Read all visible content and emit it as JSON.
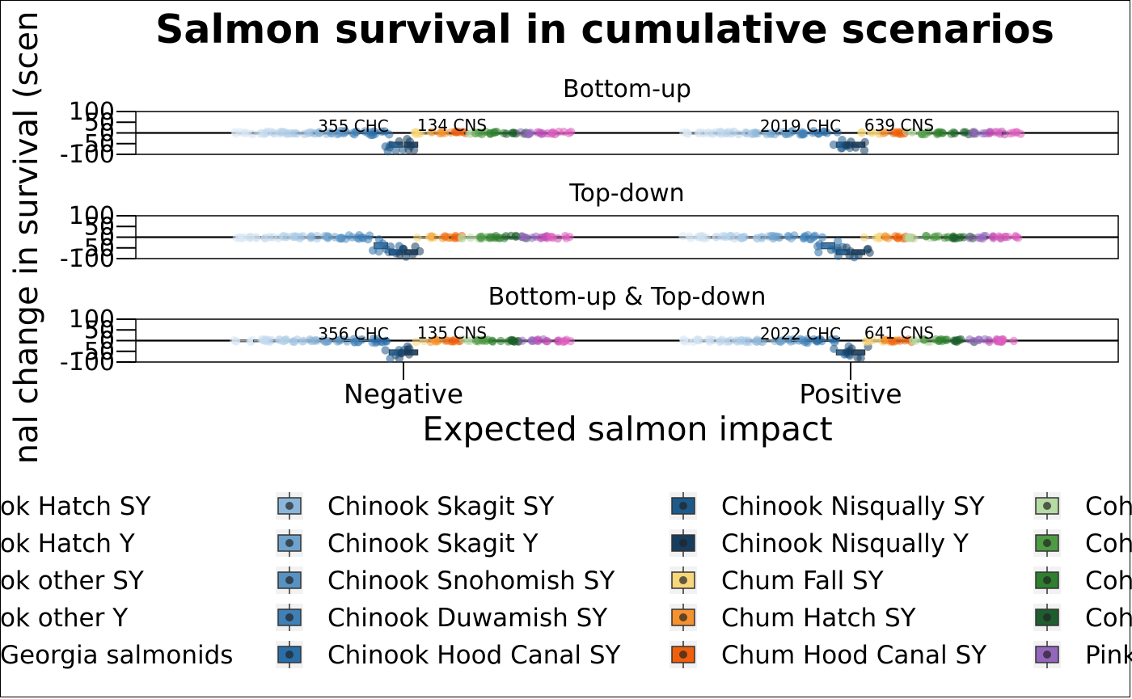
{
  "chart_data": {
    "type": "scatter",
    "title": "Salmon survival in cumulative scenarios",
    "xlabel": "Expected salmon impact",
    "ylabel": "Proportional change in survival (scenario)",
    "ylabel_visible": "nal change in survival (scen",
    "categories": [
      "Negative",
      "Positive"
    ],
    "y_ticks": [
      100,
      50,
      0,
      -50,
      -100
    ],
    "y_tick_labels": [
      "100",
      "50",
      "0",
      "-50",
      "-100"
    ],
    "ylim": [
      -100,
      100
    ],
    "panels": [
      {
        "label": "Bottom-up",
        "annotations": [
          {
            "text": "355 CHC",
            "category": "Negative",
            "y": 5
          },
          {
            "text": "134 CNS",
            "category": "Negative",
            "y": 10
          },
          {
            "text": "2019 CHC",
            "category": "Positive",
            "y": 5
          },
          {
            "text": "639 CNS",
            "category": "Positive",
            "y": 10
          }
        ]
      },
      {
        "label": "Top-down",
        "annotations": []
      },
      {
        "label": "Bottom-up & Top-down",
        "annotations": [
          {
            "text": "135 CNS",
            "category": "Negative",
            "y": 10
          },
          {
            "text": "356 CHC",
            "category": "Negative",
            "y": 5
          },
          {
            "text": "2022 CHC",
            "category": "Positive",
            "y": 5
          },
          {
            "text": "641 CNS",
            "category": "Positive",
            "y": 10
          }
        ]
      }
    ],
    "legend_placement": "bottom",
    "legend_columns": [
      {
        "items": [
          {
            "label": "ok Hatch SY",
            "color": "#dbe9f6"
          },
          {
            "label": "ok Hatch Y",
            "color": "#cfe1f2"
          },
          {
            "label": "ok other SY",
            "color": "#c3d9ee"
          },
          {
            "label": "ok other Y",
            "color": "#b5d1ea"
          },
          {
            "label": "Georgia salmonids",
            "color": "#a7c9e5"
          }
        ]
      },
      {
        "items": [
          {
            "label": "Chinook Skagit SY",
            "color": "#8cb6d9"
          },
          {
            "label": "Chinook Skagit Y",
            "color": "#6fa3cd"
          },
          {
            "label": "Chinook Snohomish SY",
            "color": "#5792c2"
          },
          {
            "label": "Chinook Duwamish SY",
            "color": "#3f80b6"
          },
          {
            "label": "Chinook Hood Canal SY",
            "color": "#2a6ea8"
          }
        ]
      },
      {
        "items": [
          {
            "label": "Chinook Nisqually SY",
            "color": "#1d5a8c"
          },
          {
            "label": "Chinook Nisqually Y",
            "color": "#163d5e"
          },
          {
            "label": "Chum Fall SY",
            "color": "#f7d77a"
          },
          {
            "label": "Chum Hatch SY",
            "color": "#f5922f"
          },
          {
            "label": "Chum Hood Canal SY",
            "color": "#f0600c"
          }
        ]
      },
      {
        "items": [
          {
            "label": "Coh",
            "color": "#b7dba4"
          },
          {
            "label": "Coh",
            "color": "#4f9a45"
          },
          {
            "label": "Coh",
            "color": "#2e7f2e"
          },
          {
            "label": "Coh",
            "color": "#1e5e2e"
          },
          {
            "label": "Pink",
            "color": "#9467bd"
          }
        ]
      }
    ],
    "extra_series_colors": [
      "#c34fb8",
      "#e05ec0"
    ]
  }
}
